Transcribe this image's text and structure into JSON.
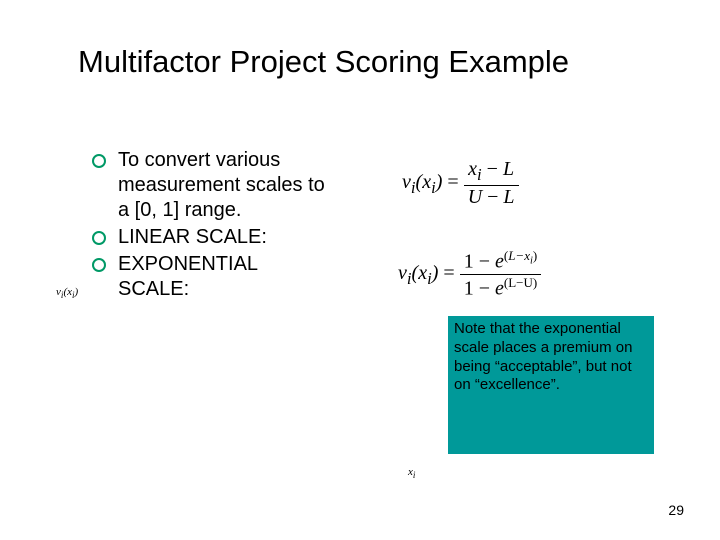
{
  "title": "Multifactor Project Scoring Example",
  "bullets": {
    "b1": "To convert various measurement scales to a [0, 1] range.",
    "b2": "LINEAR SCALE:",
    "b3": "EXPONENTIAL SCALE:"
  },
  "marginal_label": "v",
  "marginal_sub1": "i",
  "marginal_paren_open": "(",
  "marginal_x": "x",
  "marginal_sub2": "i",
  "marginal_paren_close": ")",
  "formula1": {
    "lhs_v": "v",
    "lhs_i1": "i",
    "lhs_open": "(",
    "lhs_x": "x",
    "lhs_i2": "i",
    "lhs_close": ")",
    "eq": " = ",
    "num_x": "x",
    "num_i": "i",
    "num_minus": " − ",
    "num_L": "L",
    "den_U": "U",
    "den_minus": " − ",
    "den_L": "L"
  },
  "formula2": {
    "lhs_v": "v",
    "lhs_i1": "i",
    "lhs_open": "(",
    "lhs_x": "x",
    "lhs_i2": "i",
    "lhs_close": ")",
    "eq": " = ",
    "num_one": "1 − ",
    "num_e": "e",
    "num_exp_open": "(",
    "num_exp_L": "L−x",
    "num_exp_i": "i",
    "num_exp_close": ")",
    "den_one": "1 − ",
    "den_e": "e",
    "den_exp": "(L−U)"
  },
  "note": "Note that the exponential scale places a premium on being “acceptable”, but not on “excellence”.",
  "xi_x": "x",
  "xi_i": "i",
  "page_number": "29",
  "colors": {
    "bullet_ring": "#009966",
    "note_bg": "#009999",
    "bg": "#ffffff"
  }
}
